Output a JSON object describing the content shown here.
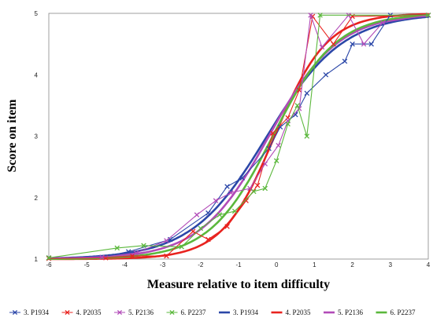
{
  "chart_data": {
    "type": "line",
    "xlabel": "Measure relative to item difficulty",
    "ylabel": "Score on item",
    "xlim": [
      -6,
      4
    ],
    "ylim": [
      1,
      5
    ],
    "x_ticks": [
      "-6",
      "-5",
      "-4",
      "-3",
      "-2",
      "-1",
      "0",
      "1",
      "2",
      "3",
      "4"
    ],
    "y_ticks": [
      "1",
      "2",
      "3",
      "4",
      "5"
    ],
    "grid": false,
    "legend_position": "bottom",
    "observed_series": [
      {
        "name": "3. P1934",
        "color": "#2b47a8",
        "marker": "x",
        "points": [
          [
            -6,
            1.02
          ],
          [
            -4.6,
            1.03
          ],
          [
            -3.9,
            1.12
          ],
          [
            -2.8,
            1.32
          ],
          [
            -1.8,
            1.75
          ],
          [
            -1.3,
            2.18
          ],
          [
            -0.9,
            2.32
          ],
          [
            -0.2,
            2.8
          ],
          [
            0.1,
            3.15
          ],
          [
            0.5,
            3.35
          ],
          [
            0.8,
            3.7
          ],
          [
            1.3,
            4.0
          ],
          [
            1.8,
            4.22
          ],
          [
            2.0,
            4.5
          ],
          [
            2.5,
            4.5
          ],
          [
            3.0,
            4.97
          ],
          [
            4.0,
            4.97
          ]
        ]
      },
      {
        "name": "4. P2035",
        "color": "#e8231f",
        "marker": "x",
        "points": [
          [
            -6,
            1.01
          ],
          [
            -4.5,
            1.02
          ],
          [
            -3.8,
            1.05
          ],
          [
            -2.9,
            1.05
          ],
          [
            -2.2,
            1.45
          ],
          [
            -1.8,
            1.32
          ],
          [
            -1.3,
            1.53
          ],
          [
            -0.8,
            1.95
          ],
          [
            -0.5,
            2.2
          ],
          [
            -0.1,
            3.05
          ],
          [
            0.3,
            3.3
          ],
          [
            0.6,
            3.75
          ],
          [
            0.95,
            4.95
          ],
          [
            1.5,
            4.5
          ],
          [
            2.0,
            4.95
          ],
          [
            4.0,
            4.97
          ]
        ]
      },
      {
        "name": "5. P2136",
        "color": "#b24bb8",
        "marker": "x",
        "points": [
          [
            -6,
            1.02
          ],
          [
            -4.6,
            1.03
          ],
          [
            -3.7,
            1.1
          ],
          [
            -2.9,
            1.3
          ],
          [
            -2.1,
            1.72
          ],
          [
            -1.6,
            1.95
          ],
          [
            -1.2,
            2.08
          ],
          [
            -0.7,
            2.15
          ],
          [
            -0.3,
            2.55
          ],
          [
            0.05,
            2.85
          ],
          [
            0.3,
            3.25
          ],
          [
            0.6,
            3.45
          ],
          [
            0.9,
            4.97
          ],
          [
            1.2,
            4.45
          ],
          [
            1.9,
            4.97
          ],
          [
            2.3,
            4.5
          ],
          [
            2.8,
            4.85
          ],
          [
            4.0,
            4.97
          ]
        ]
      },
      {
        "name": "6. P2237",
        "color": "#5bb83c",
        "marker": "x",
        "points": [
          [
            -6,
            1.02
          ],
          [
            -4.2,
            1.18
          ],
          [
            -3.5,
            1.22
          ],
          [
            -2.5,
            1.2
          ],
          [
            -2.0,
            1.5
          ],
          [
            -1.5,
            1.72
          ],
          [
            -1.1,
            1.78
          ],
          [
            -0.6,
            2.1
          ],
          [
            -0.3,
            2.15
          ],
          [
            0.0,
            2.6
          ],
          [
            0.3,
            3.2
          ],
          [
            0.55,
            3.5
          ],
          [
            0.8,
            3.0
          ],
          [
            1.15,
            4.97
          ],
          [
            4.0,
            4.97
          ]
        ]
      }
    ],
    "model_series": [
      {
        "name": "3. P1934",
        "color": "#2b47a8",
        "center": -0.25,
        "slope": 1.0
      },
      {
        "name": "4. P2035",
        "color": "#e8231f",
        "center": -0.05,
        "slope": 1.45
      },
      {
        "name": "5. P2136",
        "color": "#b24bb8",
        "center": -0.2,
        "slope": 1.1
      },
      {
        "name": "6. P2237",
        "color": "#5bb83c",
        "center": -0.1,
        "slope": 1.2
      }
    ],
    "legend": [
      {
        "label": "3. P1934",
        "color": "#2b47a8",
        "style": "marker"
      },
      {
        "label": "4. P2035",
        "color": "#e8231f",
        "style": "marker"
      },
      {
        "label": "5. P2136",
        "color": "#b24bb8",
        "style": "marker"
      },
      {
        "label": "6. P2237",
        "color": "#5bb83c",
        "style": "marker"
      },
      {
        "label": "3. P1934",
        "color": "#2b47a8",
        "style": "line"
      },
      {
        "label": "4. P2035",
        "color": "#e8231f",
        "style": "line"
      },
      {
        "label": "5. P2136",
        "color": "#b24bb8",
        "style": "line"
      },
      {
        "label": "6. P2237",
        "color": "#5bb83c",
        "style": "line"
      }
    ]
  }
}
